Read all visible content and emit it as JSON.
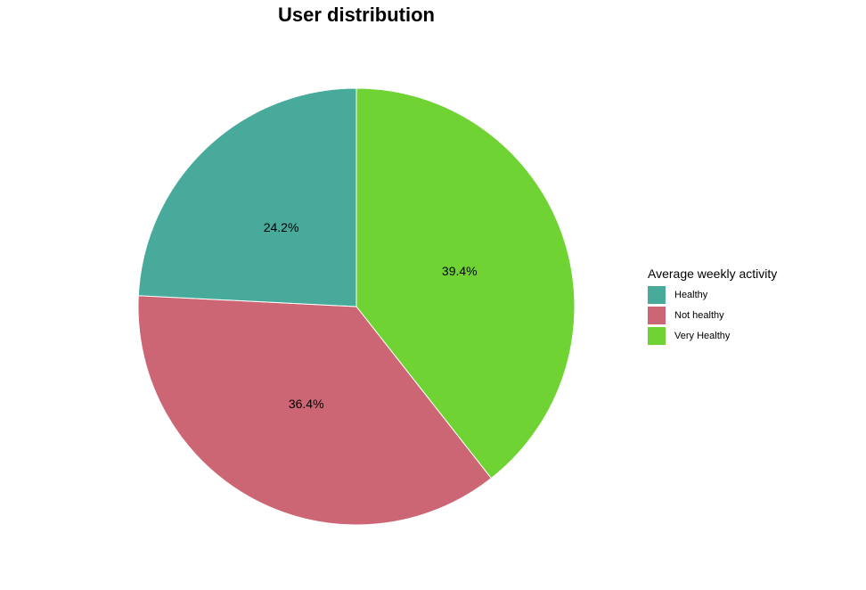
{
  "chart_data": {
    "type": "pie",
    "title": "User distribution",
    "legend_title": "Average weekly activity",
    "legend_position": "right",
    "slices": [
      {
        "label": "Very Healthy",
        "value": 39.4,
        "display": "39.4%",
        "color": "#6fd334"
      },
      {
        "label": "Not healthy",
        "value": 36.4,
        "display": "36.4%",
        "color": "#cc6574"
      },
      {
        "label": "Healthy",
        "value": 24.2,
        "display": "24.2%",
        "color": "#47aa9a"
      }
    ],
    "legend_order": [
      "Healthy",
      "Not healthy",
      "Very Healthy"
    ]
  }
}
